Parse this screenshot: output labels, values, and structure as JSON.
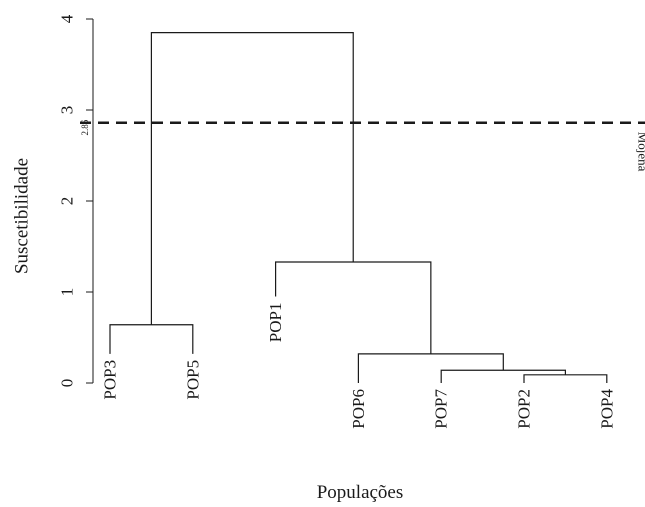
{
  "chart_data": {
    "type": "dendrogram",
    "xlabel": "Populações",
    "ylabel": "Suscetibilidade",
    "ylim": [
      0,
      4
    ],
    "yticks": [
      0,
      1,
      2,
      3,
      4
    ],
    "ytick_labels": [
      "0",
      "1",
      "2",
      "3",
      "4"
    ],
    "leaves": [
      "POP3",
      "POP5",
      "POP1",
      "POP6",
      "POP7",
      "POP2",
      "POP4"
    ],
    "leaf_heights": [
      0.32,
      0.32,
      0.95,
      0.0,
      0.0,
      0.0,
      0.0
    ],
    "merges": [
      {
        "left": "POP2",
        "right": "POP4",
        "height": 0.09
      },
      {
        "left": "POP7",
        "right": "POP2-POP4",
        "height": 0.14
      },
      {
        "left": "POP6",
        "right": "POP7-POP2-POP4",
        "height": 0.32
      },
      {
        "left": "POP3",
        "right": "POP5",
        "height": 0.64
      },
      {
        "left": "POP1",
        "right": "POP6-POP7-POP2-POP4",
        "height": 1.33
      },
      {
        "left": "POP3-POP5",
        "right": "POP1-POP6-POP7-POP2-POP4",
        "height": 3.85
      }
    ],
    "threshold": {
      "value": 2.86,
      "value_label": "2.86",
      "label": "Mojena"
    },
    "grid": false
  }
}
